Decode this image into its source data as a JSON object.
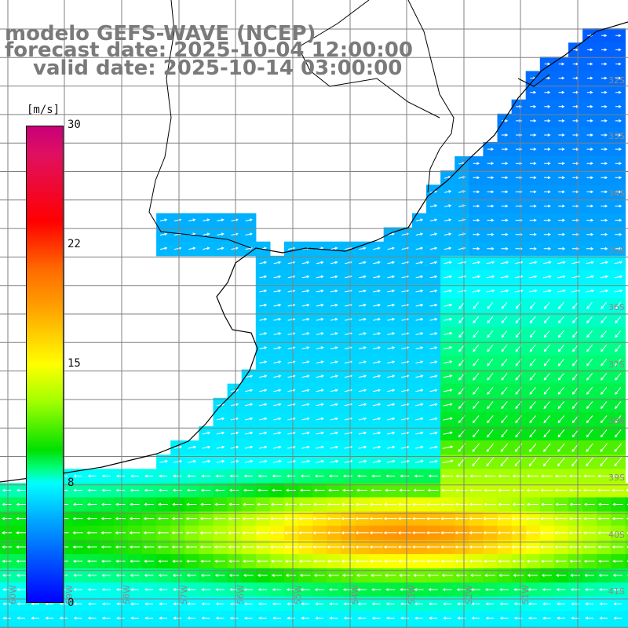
{
  "title": {
    "line1": "modelo GEFS-WAVE (NCEP)",
    "line2": "forecast date: 2025-10-04 12:00:00",
    "line3": "valid date: 2025-10-14 03:00:00"
  },
  "colorbar": {
    "unit": "[m/s]",
    "min": 0,
    "max": 30,
    "ticks": [
      "30",
      "22",
      "15",
      "8",
      "0"
    ]
  },
  "grid": {
    "lat_labels": [
      "32S",
      "33S",
      "34S",
      "35S",
      "36S",
      "37S",
      "38S",
      "39S",
      "40S",
      "41S"
    ],
    "lon_labels": [
      "60W",
      "59W",
      "58W",
      "57W",
      "56W",
      "55W",
      "54W",
      "53W",
      "52W",
      "51W"
    ]
  },
  "field": {
    "variable": "wind speed",
    "units": "m/s",
    "arrows": "wind direction"
  },
  "colors": {
    "land": "#ffffff",
    "coast": "#000000",
    "grid": "#808080",
    "title": "#7a7a7a"
  }
}
